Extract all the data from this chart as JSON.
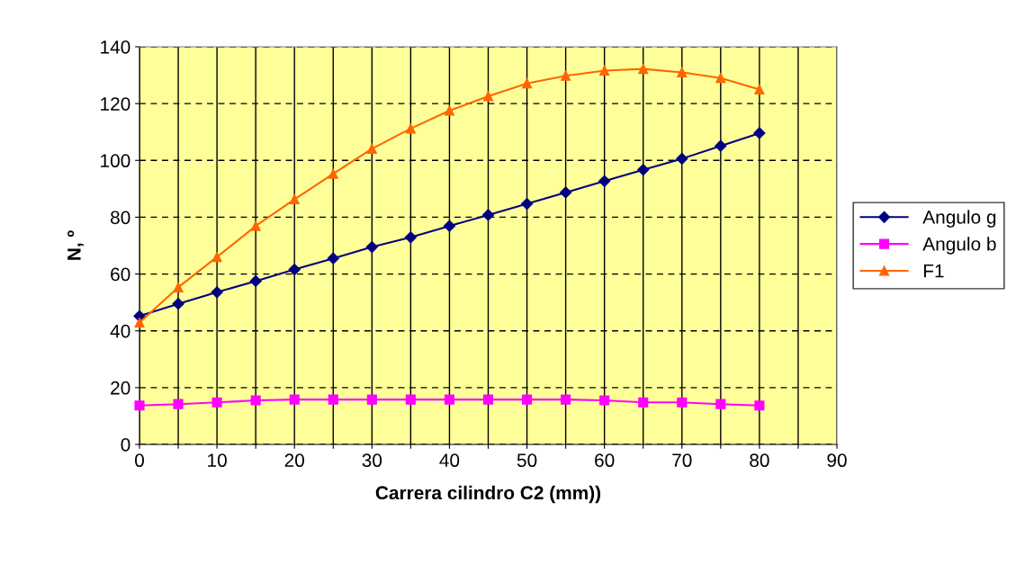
{
  "chart_data": {
    "type": "line",
    "xlabel": "Carrera cilindro C2 (mm))",
    "ylabel": "N, º",
    "x": [
      0,
      5,
      10,
      15,
      20,
      25,
      30,
      35,
      40,
      45,
      50,
      55,
      60,
      65,
      70,
      75,
      80
    ],
    "series": [
      {
        "name": "Angulo g",
        "color": "#000080",
        "marker": "diamond",
        "values": [
          45.2,
          49.5,
          53.6,
          57.5,
          61.6,
          65.5,
          69.5,
          72.9,
          76.9,
          80.8,
          84.7,
          88.7,
          92.7,
          96.7,
          100.6,
          105.1,
          109.6
        ]
      },
      {
        "name": "Angulo b",
        "color": "#ff00ff",
        "marker": "square",
        "values": [
          13.7,
          14.2,
          14.8,
          15.5,
          15.8,
          15.8,
          15.8,
          15.8,
          15.8,
          15.8,
          15.8,
          15.8,
          15.5,
          14.8,
          14.8,
          14.2,
          13.7
        ]
      },
      {
        "name": "F1",
        "color": "#ff6600",
        "marker": "triangle",
        "values": [
          42.9,
          55.3,
          66,
          76.9,
          86.3,
          95.3,
          104.1,
          111.2,
          117.5,
          122.6,
          127.1,
          129.8,
          131.6,
          132.2,
          131,
          129,
          125
        ]
      }
    ],
    "xlim": [
      0,
      90
    ],
    "xticks": [
      0,
      {
        "value": 5,
        "label": null
      },
      10,
      {
        "value": 15,
        "label": null
      },
      20,
      {
        "value": 25,
        "label": null
      },
      30,
      {
        "value": 35,
        "label": null
      },
      40,
      {
        "value": 45,
        "label": null
      },
      50,
      {
        "value": 55,
        "label": null
      },
      60,
      {
        "value": 65,
        "label": null
      },
      70,
      {
        "value": 75,
        "label": null
      },
      80,
      {
        "value": 85,
        "label": null
      },
      90
    ],
    "ylim": [
      0,
      140
    ],
    "yticks": [
      0,
      20,
      40,
      60,
      80,
      100,
      120,
      140
    ],
    "grid": true,
    "legend": "right",
    "line_style": "solid"
  }
}
